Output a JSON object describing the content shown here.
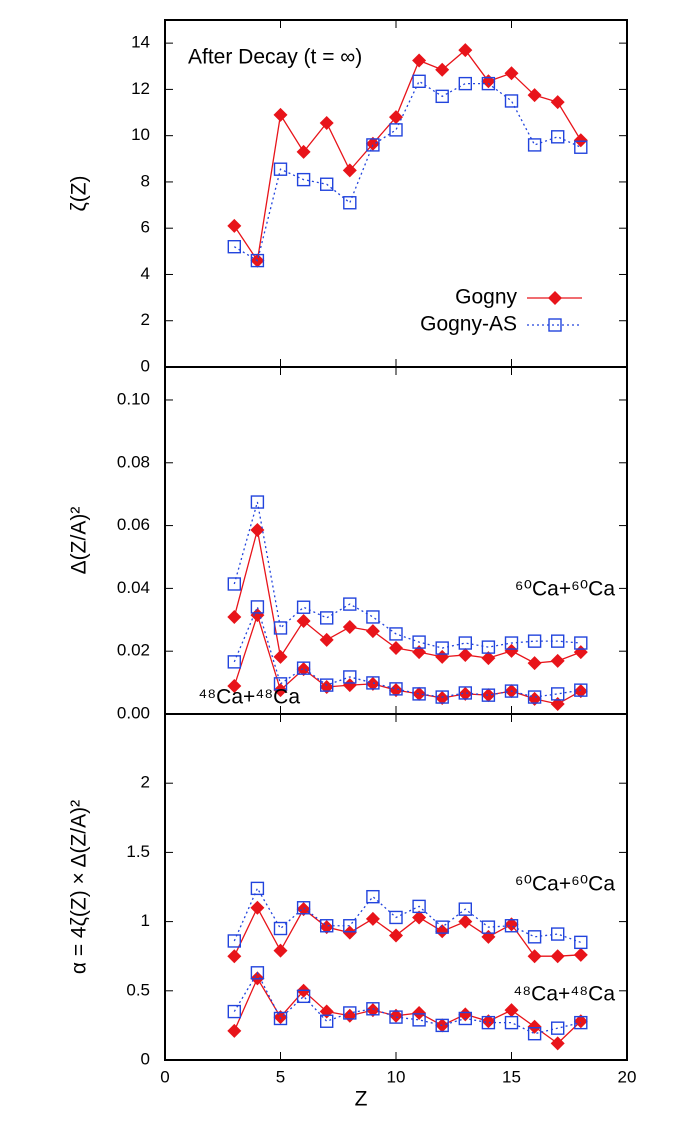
{
  "chart_data": [
    {
      "type": "line",
      "ylabel": "ζ(Z)",
      "annotation": "After Decay (t = ∞)",
      "legend": "right",
      "x": [
        3,
        4,
        5,
        6,
        7,
        8,
        9,
        10,
        11,
        12,
        13,
        14,
        15,
        16,
        17,
        18
      ],
      "xlim": [
        0,
        20
      ],
      "xticks": [
        0,
        5,
        10,
        15,
        20
      ],
      "ylim": [
        0,
        15
      ],
      "yticks": [
        0,
        2,
        4,
        6,
        8,
        10,
        12,
        14
      ],
      "series": [
        {
          "name": "Gogny",
          "color": "#e8141a",
          "style": "solid",
          "marker": "diamond",
          "values": [
            6.1,
            4.6,
            10.9,
            9.3,
            10.55,
            8.5,
            9.65,
            10.8,
            13.25,
            12.85,
            13.7,
            12.35,
            12.7,
            11.75,
            11.45,
            9.8
          ]
        },
        {
          "name": "Gogny-AS",
          "color": "#2244dd",
          "style": "dotted",
          "marker": "square",
          "values": [
            5.2,
            4.6,
            8.55,
            8.1,
            7.9,
            7.1,
            9.6,
            10.25,
            12.35,
            11.7,
            12.25,
            12.25,
            11.5,
            9.6,
            9.95,
            9.5
          ]
        }
      ]
    },
    {
      "type": "line",
      "ylabel": "Δ(Z/A)²",
      "x": [
        3,
        4,
        5,
        6,
        7,
        8,
        9,
        10,
        11,
        12,
        13,
        14,
        15,
        16,
        17,
        18
      ],
      "xlim": [
        0,
        20
      ],
      "xticks": [
        0,
        5,
        10,
        15,
        20
      ],
      "ylim": [
        0,
        0.1105
      ],
      "yticks": [
        {
          "value": 0,
          "label": "0.00"
        },
        0.02,
        0.04,
        0.06,
        0.08,
        {
          "value": 0.1,
          "label": "0.10"
        }
      ],
      "groups": [
        {
          "label": "⁶⁰Ca+⁶⁰Ca",
          "series": [
            {
              "color": "#e8141a",
              "style": "solid",
              "marker": "diamond",
              "values": [
                0.0309,
                0.0586,
                0.0182,
                0.0296,
                0.0236,
                0.0277,
                0.0264,
                0.021,
                0.0197,
                0.0182,
                0.0188,
                0.0178,
                0.0201,
                0.0162,
                0.0169,
                0.0197
              ]
            },
            {
              "color": "#2244dd",
              "style": "dotted",
              "marker": "square",
              "values": [
                0.0414,
                0.0675,
                0.0274,
                0.034,
                0.0306,
                0.035,
                0.0309,
                0.0255,
                0.0229,
                0.021,
                0.0226,
                0.0213,
                0.0226,
                0.0232,
                0.0232,
                0.0226
              ]
            }
          ]
        },
        {
          "label": "⁴⁸Ca+⁴⁸Ca",
          "series": [
            {
              "color": "#e8141a",
              "style": "solid",
              "marker": "diamond",
              "values": [
                0.0089,
                0.0315,
                0.0076,
                0.0143,
                0.0086,
                0.0092,
                0.0096,
                0.0076,
                0.0064,
                0.0051,
                0.0064,
                0.006,
                0.0073,
                0.0048,
                0.0032,
                0.0073
              ]
            },
            {
              "color": "#2244dd",
              "style": "dotted",
              "marker": "square",
              "values": [
                0.0166,
                0.0341,
                0.0096,
                0.0146,
                0.0092,
                0.0118,
                0.0099,
                0.008,
                0.0064,
                0.0054,
                0.0067,
                0.006,
                0.0073,
                0.0054,
                0.0064,
                0.0076
              ]
            }
          ]
        }
      ]
    },
    {
      "type": "line",
      "ylabel": "α = 4ζ(Z) × Δ(Z/A)²",
      "xlabel": "Z",
      "x": [
        3,
        4,
        5,
        6,
        7,
        8,
        9,
        10,
        11,
        12,
        13,
        14,
        15,
        16,
        17,
        18
      ],
      "xlim": [
        0,
        20
      ],
      "xticks": [
        0,
        5,
        10,
        15,
        20
      ],
      "ylim": [
        0,
        2.5
      ],
      "yticks": [
        0,
        0.5,
        1,
        1.5,
        2
      ],
      "groups": [
        {
          "label": "⁶⁰Ca+⁶⁰Ca",
          "series": [
            {
              "color": "#e8141a",
              "style": "solid",
              "marker": "diamond",
              "values": [
                0.75,
                1.1,
                0.79,
                1.09,
                0.96,
                0.92,
                1.02,
                0.9,
                1.03,
                0.93,
                1.0,
                0.89,
                0.98,
                0.75,
                0.75,
                0.76
              ]
            },
            {
              "color": "#2244dd",
              "style": "dotted",
              "marker": "square",
              "values": [
                0.86,
                1.24,
                0.95,
                1.1,
                0.97,
                0.97,
                1.18,
                1.03,
                1.11,
                0.96,
                1.09,
                0.96,
                0.97,
                0.89,
                0.91,
                0.85
              ]
            }
          ]
        },
        {
          "label": "⁴⁸Ca+⁴⁸Ca",
          "series": [
            {
              "color": "#e8141a",
              "style": "solid",
              "marker": "diamond",
              "values": [
                0.21,
                0.59,
                0.31,
                0.5,
                0.35,
                0.32,
                0.36,
                0.32,
                0.34,
                0.25,
                0.33,
                0.28,
                0.36,
                0.24,
                0.12,
                0.28
              ]
            },
            {
              "color": "#2244dd",
              "style": "dotted",
              "marker": "square",
              "values": [
                0.35,
                0.63,
                0.3,
                0.46,
                0.28,
                0.34,
                0.37,
                0.31,
                0.29,
                0.25,
                0.3,
                0.27,
                0.27,
                0.19,
                0.23,
                0.27
              ]
            }
          ]
        }
      ]
    }
  ]
}
